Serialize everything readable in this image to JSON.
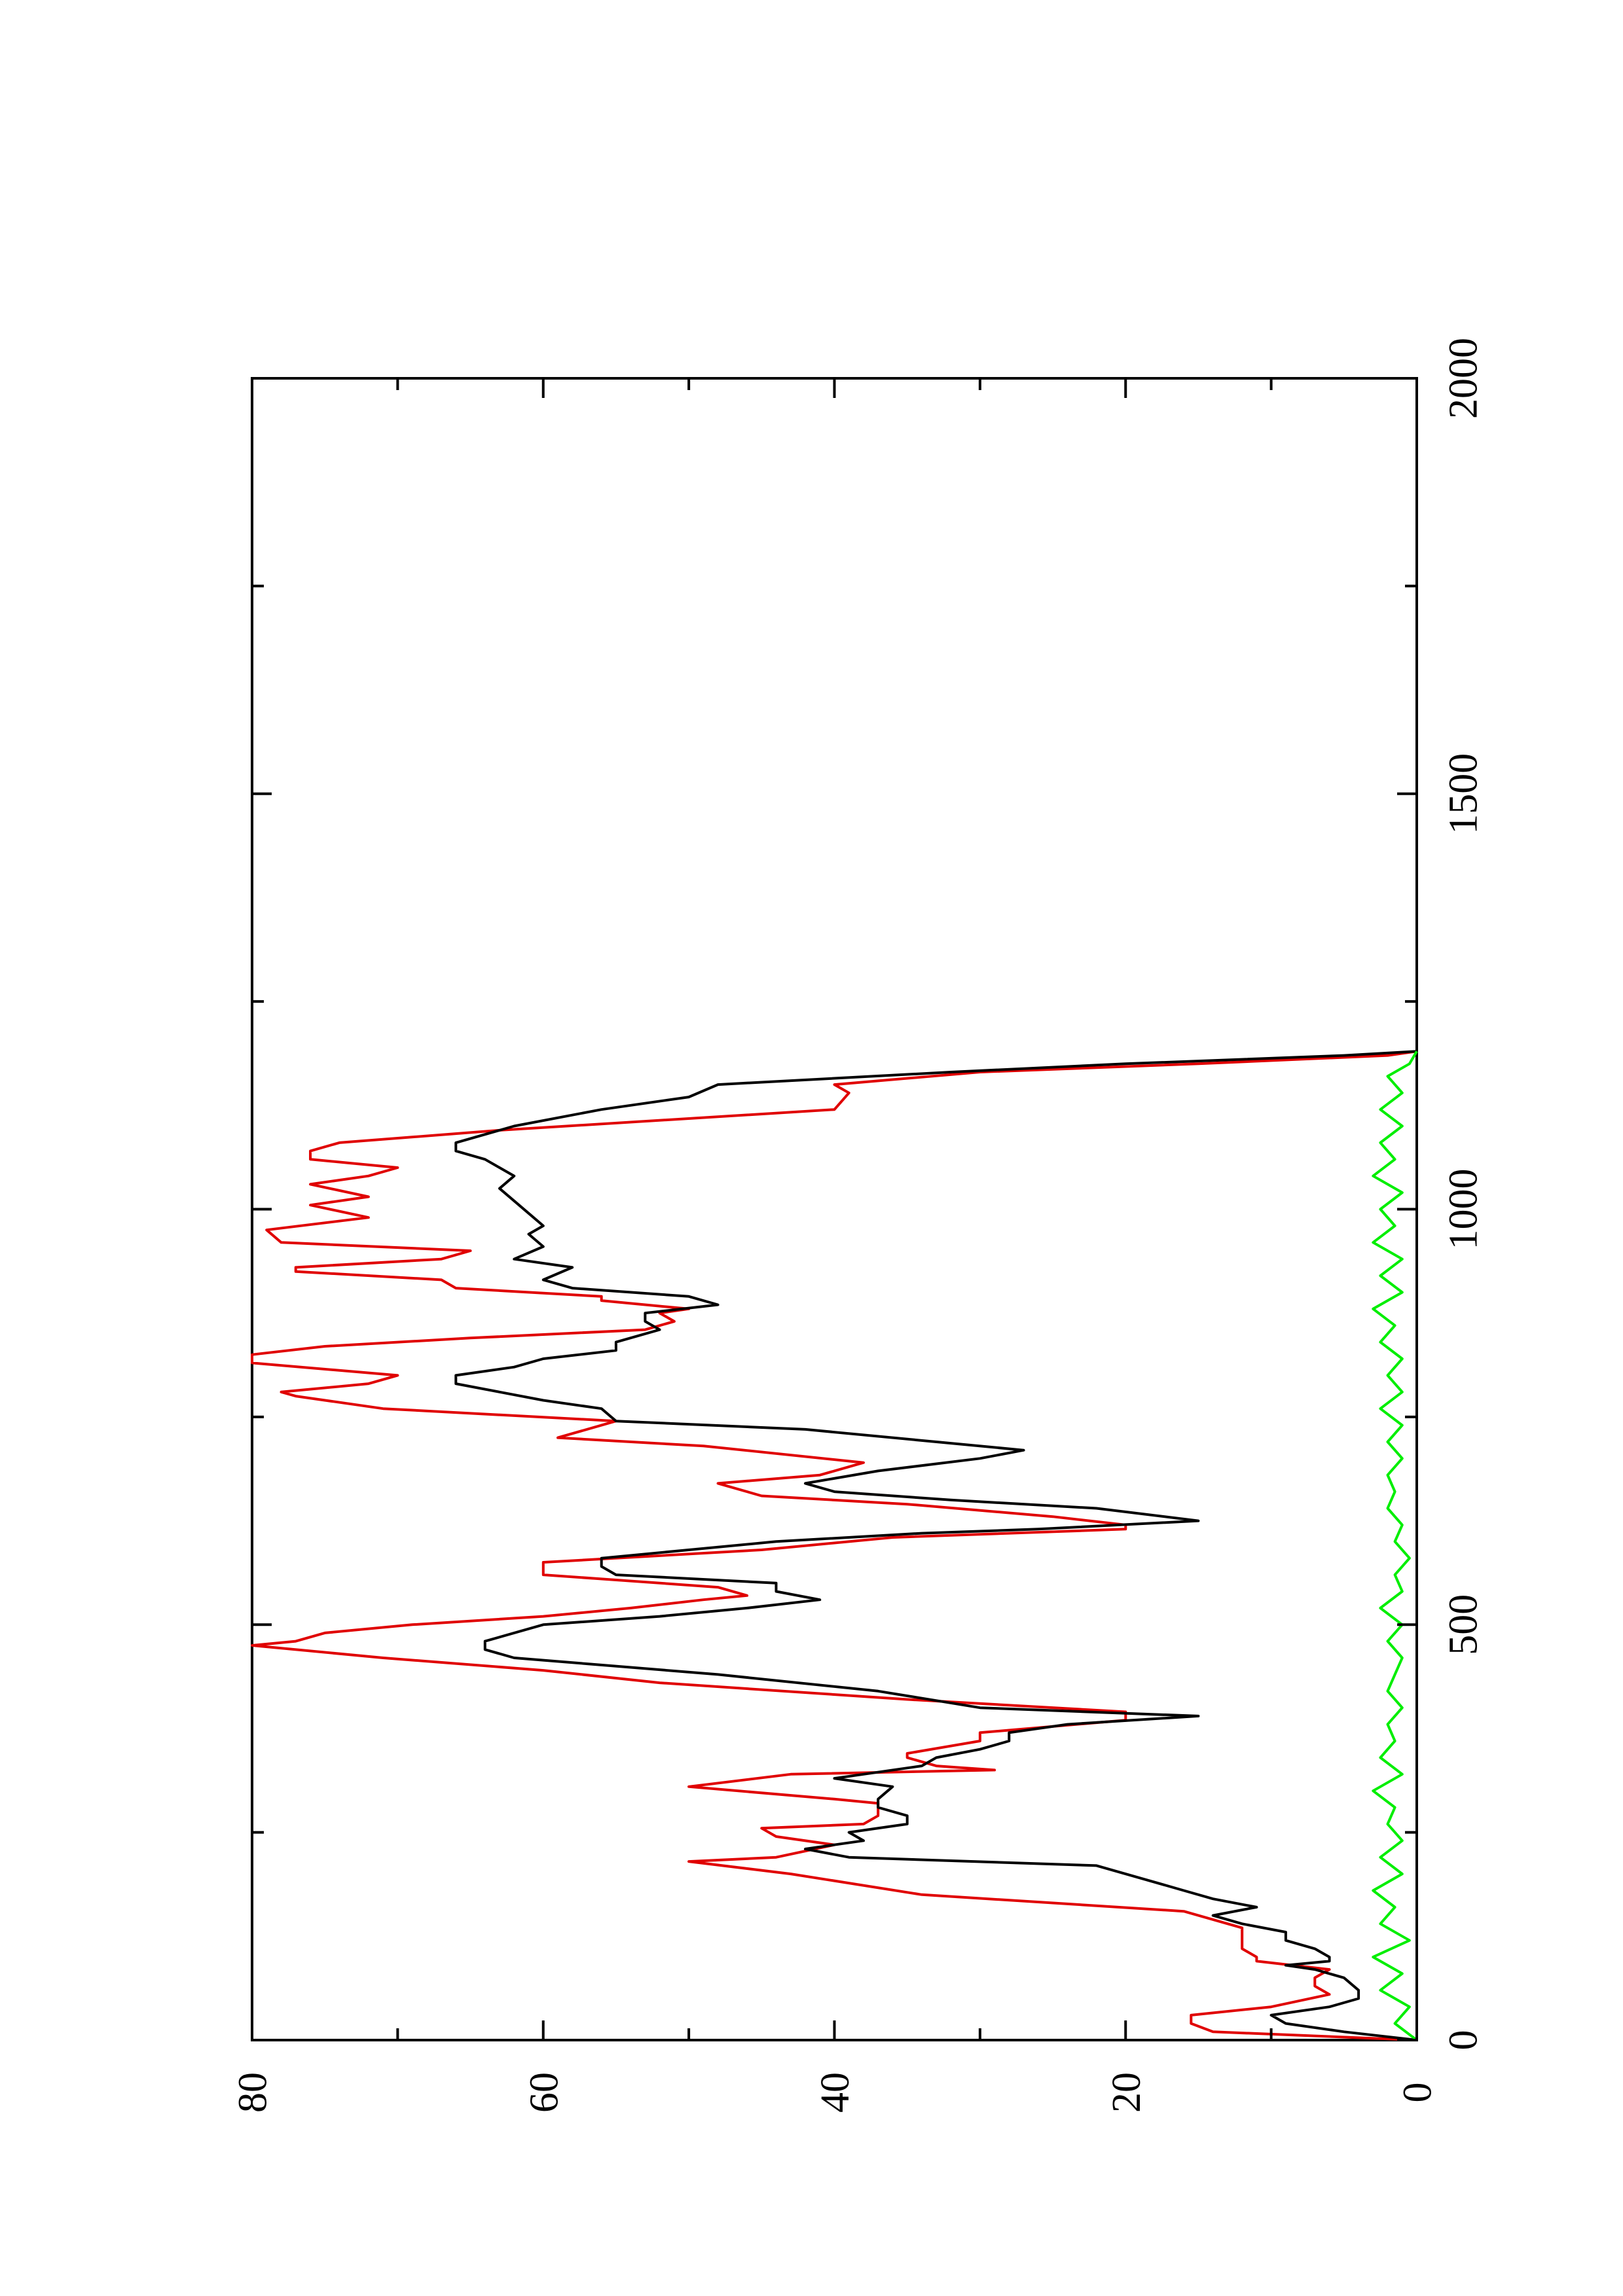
{
  "chart_data": {
    "type": "line",
    "orientation": "rotated-90-ccw",
    "title": "",
    "xlabel": "",
    "ylabel": "",
    "xlim": [
      0,
      2000
    ],
    "ylim": [
      0,
      80
    ],
    "x_ticks": [
      0,
      500,
      1000,
      1500,
      2000
    ],
    "y_ticks": [
      0,
      20,
      40,
      60,
      80
    ],
    "x_tick_labels": [
      "0",
      "500",
      "1000",
      "1500",
      "2000"
    ],
    "y_tick_labels": [
      "0",
      "20",
      "40",
      "60",
      "80"
    ],
    "grid": false,
    "legend": "none",
    "series": [
      {
        "color": "#e00000",
        "points": [
          [
            0,
            0
          ],
          [
            10,
            14
          ],
          [
            20,
            15.5
          ],
          [
            30,
            15.5
          ],
          [
            40,
            10
          ],
          [
            55,
            6
          ],
          [
            65,
            7
          ],
          [
            75,
            7
          ],
          [
            85,
            6
          ],
          [
            95,
            11
          ],
          [
            100,
            11
          ],
          [
            110,
            12
          ],
          [
            120,
            12
          ],
          [
            135,
            12
          ],
          [
            155,
            16
          ],
          [
            175,
            34
          ],
          [
            200,
            43
          ],
          [
            215,
            50
          ],
          [
            220,
            44
          ],
          [
            235,
            40
          ],
          [
            245,
            44
          ],
          [
            255,
            45
          ],
          [
            260,
            38
          ],
          [
            270,
            37
          ],
          [
            285,
            37
          ],
          [
            290,
            40
          ],
          [
            305,
            50
          ],
          [
            320,
            43
          ],
          [
            325,
            29
          ],
          [
            330,
            33
          ],
          [
            340,
            35
          ],
          [
            345,
            35
          ],
          [
            360,
            30
          ],
          [
            370,
            30
          ],
          [
            385,
            20
          ],
          [
            395,
            20
          ],
          [
            410,
            35
          ],
          [
            430,
            52
          ],
          [
            445,
            60
          ],
          [
            460,
            71
          ],
          [
            475,
            80
          ],
          [
            480,
            77
          ],
          [
            490,
            75
          ],
          [
            500,
            69
          ],
          [
            510,
            60
          ],
          [
            520,
            54
          ],
          [
            530,
            49
          ],
          [
            535,
            46
          ],
          [
            545,
            48
          ],
          [
            560,
            60
          ],
          [
            575,
            60
          ],
          [
            590,
            45
          ],
          [
            605,
            36
          ],
          [
            615,
            20
          ],
          [
            620,
            20
          ],
          [
            630,
            25
          ],
          [
            645,
            35
          ],
          [
            655,
            45
          ],
          [
            670,
            48
          ],
          [
            680,
            41
          ],
          [
            695,
            38
          ],
          [
            715,
            49
          ],
          [
            725,
            59
          ],
          [
            745,
            55
          ],
          [
            760,
            71
          ],
          [
            775,
            77
          ],
          [
            780,
            78
          ],
          [
            790,
            72
          ],
          [
            800,
            70
          ],
          [
            815,
            80
          ],
          [
            825,
            80
          ],
          [
            835,
            75
          ],
          [
            845,
            65
          ],
          [
            855,
            53
          ],
          [
            865,
            51
          ],
          [
            875,
            52
          ],
          [
            880,
            50
          ],
          [
            890,
            56
          ],
          [
            895,
            56
          ],
          [
            905,
            66
          ],
          [
            915,
            67
          ],
          [
            925,
            77
          ],
          [
            930,
            77
          ],
          [
            940,
            67
          ],
          [
            950,
            65
          ],
          [
            960,
            78
          ],
          [
            975,
            79
          ],
          [
            990,
            72
          ],
          [
            1005,
            76
          ],
          [
            1015,
            72
          ],
          [
            1030,
            76
          ],
          [
            1040,
            72
          ],
          [
            1050,
            70
          ],
          [
            1060,
            76
          ],
          [
            1070,
            76
          ],
          [
            1080,
            74
          ],
          [
            1095,
            63
          ],
          [
            1120,
            40
          ],
          [
            1140,
            39
          ],
          [
            1150,
            40
          ],
          [
            1165,
            30
          ],
          [
            1175,
            15
          ],
          [
            1185,
            2
          ],
          [
            1190,
            0
          ]
        ]
      },
      {
        "color": "#000000",
        "points": [
          [
            0,
            0
          ],
          [
            10,
            5
          ],
          [
            20,
            9
          ],
          [
            30,
            10
          ],
          [
            40,
            6
          ],
          [
            50,
            4
          ],
          [
            60,
            4
          ],
          [
            75,
            5
          ],
          [
            85,
            7
          ],
          [
            90,
            9
          ],
          [
            95,
            6
          ],
          [
            100,
            6
          ],
          [
            110,
            7
          ],
          [
            120,
            9
          ],
          [
            130,
            9
          ],
          [
            140,
            12
          ],
          [
            150,
            14
          ],
          [
            160,
            11
          ],
          [
            170,
            14
          ],
          [
            180,
            16
          ],
          [
            195,
            19
          ],
          [
            210,
            22
          ],
          [
            220,
            39
          ],
          [
            230,
            42
          ],
          [
            240,
            38
          ],
          [
            250,
            39
          ],
          [
            260,
            35
          ],
          [
            270,
            35
          ],
          [
            280,
            37
          ],
          [
            290,
            37
          ],
          [
            305,
            36
          ],
          [
            315,
            40
          ],
          [
            320,
            38
          ],
          [
            330,
            34
          ],
          [
            340,
            33
          ],
          [
            350,
            30
          ],
          [
            360,
            28
          ],
          [
            370,
            28
          ],
          [
            380,
            24
          ],
          [
            390,
            15
          ],
          [
            400,
            30
          ],
          [
            420,
            37
          ],
          [
            440,
            48
          ],
          [
            460,
            62
          ],
          [
            470,
            64
          ],
          [
            480,
            64
          ],
          [
            500,
            60
          ],
          [
            510,
            52
          ],
          [
            520,
            46
          ],
          [
            530,
            41
          ],
          [
            540,
            44
          ],
          [
            550,
            44
          ],
          [
            560,
            55
          ],
          [
            570,
            56
          ],
          [
            580,
            56
          ],
          [
            590,
            50
          ],
          [
            600,
            44
          ],
          [
            610,
            34
          ],
          [
            615,
            26
          ],
          [
            625,
            15
          ],
          [
            640,
            22
          ],
          [
            650,
            32
          ],
          [
            660,
            40
          ],
          [
            670,
            42
          ],
          [
            685,
            37
          ],
          [
            700,
            30
          ],
          [
            710,
            27
          ],
          [
            720,
            33
          ],
          [
            735,
            42
          ],
          [
            745,
            55
          ],
          [
            760,
            56
          ],
          [
            770,
            60
          ],
          [
            780,
            63
          ],
          [
            790,
            66
          ],
          [
            800,
            66
          ],
          [
            810,
            62
          ],
          [
            820,
            60
          ],
          [
            830,
            55
          ],
          [
            840,
            55
          ],
          [
            855,
            52
          ],
          [
            865,
            53
          ],
          [
            875,
            53
          ],
          [
            885,
            48
          ],
          [
            895,
            50
          ],
          [
            905,
            58
          ],
          [
            915,
            60
          ],
          [
            930,
            58
          ],
          [
            940,
            62
          ],
          [
            955,
            60
          ],
          [
            970,
            61
          ],
          [
            980,
            60
          ],
          [
            995,
            61
          ],
          [
            1010,
            62
          ],
          [
            1025,
            63
          ],
          [
            1040,
            62
          ],
          [
            1050,
            63
          ],
          [
            1060,
            64
          ],
          [
            1070,
            66
          ],
          [
            1080,
            66
          ],
          [
            1100,
            62
          ],
          [
            1120,
            56
          ],
          [
            1135,
            50
          ],
          [
            1150,
            48
          ],
          [
            1165,
            32
          ],
          [
            1175,
            20
          ],
          [
            1185,
            5
          ],
          [
            1190,
            0
          ]
        ]
      },
      {
        "color": "#00ee00",
        "points": [
          [
            0,
            0
          ],
          [
            20,
            1.5
          ],
          [
            40,
            0.5
          ],
          [
            60,
            2.5
          ],
          [
            80,
            1
          ],
          [
            100,
            3
          ],
          [
            120,
            0.5
          ],
          [
            140,
            2.5
          ],
          [
            160,
            1.5
          ],
          [
            180,
            3
          ],
          [
            200,
            1
          ],
          [
            220,
            2.5
          ],
          [
            240,
            1
          ],
          [
            260,
            2
          ],
          [
            280,
            1.5
          ],
          [
            300,
            3
          ],
          [
            320,
            1
          ],
          [
            340,
            2.5
          ],
          [
            360,
            1.5
          ],
          [
            380,
            2
          ],
          [
            400,
            1
          ],
          [
            420,
            2
          ],
          [
            440,
            1.5
          ],
          [
            460,
            1
          ],
          [
            480,
            2
          ],
          [
            500,
            1
          ],
          [
            520,
            2.5
          ],
          [
            540,
            1
          ],
          [
            560,
            1.5
          ],
          [
            580,
            0.5
          ],
          [
            600,
            1.5
          ],
          [
            620,
            1
          ],
          [
            640,
            2
          ],
          [
            660,
            1.5
          ],
          [
            680,
            2
          ],
          [
            700,
            1
          ],
          [
            720,
            2
          ],
          [
            740,
            1
          ],
          [
            760,
            2.5
          ],
          [
            780,
            1
          ],
          [
            800,
            2
          ],
          [
            820,
            1
          ],
          [
            840,
            2.5
          ],
          [
            860,
            1.5
          ],
          [
            880,
            3
          ],
          [
            900,
            1
          ],
          [
            920,
            2.5
          ],
          [
            940,
            1
          ],
          [
            960,
            3
          ],
          [
            980,
            1.5
          ],
          [
            1000,
            2.5
          ],
          [
            1020,
            1
          ],
          [
            1040,
            3
          ],
          [
            1060,
            1.5
          ],
          [
            1080,
            2.5
          ],
          [
            1100,
            1
          ],
          [
            1120,
            2.5
          ],
          [
            1140,
            1
          ],
          [
            1160,
            2
          ],
          [
            1175,
            0.5
          ],
          [
            1190,
            0
          ]
        ]
      }
    ]
  }
}
